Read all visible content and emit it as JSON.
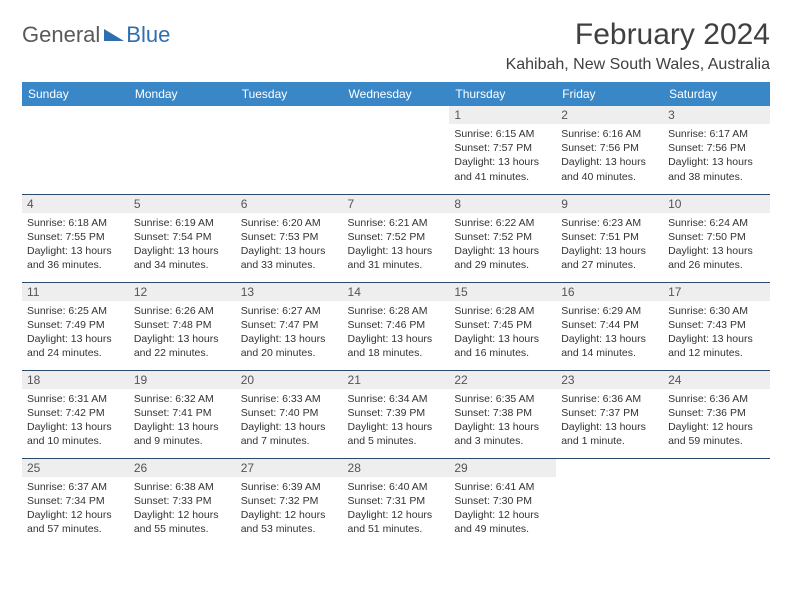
{
  "brand": {
    "part1": "General",
    "part2": "Blue"
  },
  "title": "February 2024",
  "location": "Kahibah, New South Wales, Australia",
  "colors": {
    "header_bg": "#3a87c8",
    "header_text": "#ffffff",
    "day_band": "#eeeeee",
    "rule": "#2b4a6d",
    "brand_gray": "#5a5a5a",
    "brand_blue": "#2f6fb0",
    "text": "#333333"
  },
  "day_names": [
    "Sunday",
    "Monday",
    "Tuesday",
    "Wednesday",
    "Thursday",
    "Friday",
    "Saturday"
  ],
  "weeks": [
    [
      {
        "n": "",
        "sr": "",
        "ss": "",
        "dl": ""
      },
      {
        "n": "",
        "sr": "",
        "ss": "",
        "dl": ""
      },
      {
        "n": "",
        "sr": "",
        "ss": "",
        "dl": ""
      },
      {
        "n": "",
        "sr": "",
        "ss": "",
        "dl": ""
      },
      {
        "n": "1",
        "sr": "Sunrise: 6:15 AM",
        "ss": "Sunset: 7:57 PM",
        "dl": "Daylight: 13 hours and 41 minutes."
      },
      {
        "n": "2",
        "sr": "Sunrise: 6:16 AM",
        "ss": "Sunset: 7:56 PM",
        "dl": "Daylight: 13 hours and 40 minutes."
      },
      {
        "n": "3",
        "sr": "Sunrise: 6:17 AM",
        "ss": "Sunset: 7:56 PM",
        "dl": "Daylight: 13 hours and 38 minutes."
      }
    ],
    [
      {
        "n": "4",
        "sr": "Sunrise: 6:18 AM",
        "ss": "Sunset: 7:55 PM",
        "dl": "Daylight: 13 hours and 36 minutes."
      },
      {
        "n": "5",
        "sr": "Sunrise: 6:19 AM",
        "ss": "Sunset: 7:54 PM",
        "dl": "Daylight: 13 hours and 34 minutes."
      },
      {
        "n": "6",
        "sr": "Sunrise: 6:20 AM",
        "ss": "Sunset: 7:53 PM",
        "dl": "Daylight: 13 hours and 33 minutes."
      },
      {
        "n": "7",
        "sr": "Sunrise: 6:21 AM",
        "ss": "Sunset: 7:52 PM",
        "dl": "Daylight: 13 hours and 31 minutes."
      },
      {
        "n": "8",
        "sr": "Sunrise: 6:22 AM",
        "ss": "Sunset: 7:52 PM",
        "dl": "Daylight: 13 hours and 29 minutes."
      },
      {
        "n": "9",
        "sr": "Sunrise: 6:23 AM",
        "ss": "Sunset: 7:51 PM",
        "dl": "Daylight: 13 hours and 27 minutes."
      },
      {
        "n": "10",
        "sr": "Sunrise: 6:24 AM",
        "ss": "Sunset: 7:50 PM",
        "dl": "Daylight: 13 hours and 26 minutes."
      }
    ],
    [
      {
        "n": "11",
        "sr": "Sunrise: 6:25 AM",
        "ss": "Sunset: 7:49 PM",
        "dl": "Daylight: 13 hours and 24 minutes."
      },
      {
        "n": "12",
        "sr": "Sunrise: 6:26 AM",
        "ss": "Sunset: 7:48 PM",
        "dl": "Daylight: 13 hours and 22 minutes."
      },
      {
        "n": "13",
        "sr": "Sunrise: 6:27 AM",
        "ss": "Sunset: 7:47 PM",
        "dl": "Daylight: 13 hours and 20 minutes."
      },
      {
        "n": "14",
        "sr": "Sunrise: 6:28 AM",
        "ss": "Sunset: 7:46 PM",
        "dl": "Daylight: 13 hours and 18 minutes."
      },
      {
        "n": "15",
        "sr": "Sunrise: 6:28 AM",
        "ss": "Sunset: 7:45 PM",
        "dl": "Daylight: 13 hours and 16 minutes."
      },
      {
        "n": "16",
        "sr": "Sunrise: 6:29 AM",
        "ss": "Sunset: 7:44 PM",
        "dl": "Daylight: 13 hours and 14 minutes."
      },
      {
        "n": "17",
        "sr": "Sunrise: 6:30 AM",
        "ss": "Sunset: 7:43 PM",
        "dl": "Daylight: 13 hours and 12 minutes."
      }
    ],
    [
      {
        "n": "18",
        "sr": "Sunrise: 6:31 AM",
        "ss": "Sunset: 7:42 PM",
        "dl": "Daylight: 13 hours and 10 minutes."
      },
      {
        "n": "19",
        "sr": "Sunrise: 6:32 AM",
        "ss": "Sunset: 7:41 PM",
        "dl": "Daylight: 13 hours and 9 minutes."
      },
      {
        "n": "20",
        "sr": "Sunrise: 6:33 AM",
        "ss": "Sunset: 7:40 PM",
        "dl": "Daylight: 13 hours and 7 minutes."
      },
      {
        "n": "21",
        "sr": "Sunrise: 6:34 AM",
        "ss": "Sunset: 7:39 PM",
        "dl": "Daylight: 13 hours and 5 minutes."
      },
      {
        "n": "22",
        "sr": "Sunrise: 6:35 AM",
        "ss": "Sunset: 7:38 PM",
        "dl": "Daylight: 13 hours and 3 minutes."
      },
      {
        "n": "23",
        "sr": "Sunrise: 6:36 AM",
        "ss": "Sunset: 7:37 PM",
        "dl": "Daylight: 13 hours and 1 minute."
      },
      {
        "n": "24",
        "sr": "Sunrise: 6:36 AM",
        "ss": "Sunset: 7:36 PM",
        "dl": "Daylight: 12 hours and 59 minutes."
      }
    ],
    [
      {
        "n": "25",
        "sr": "Sunrise: 6:37 AM",
        "ss": "Sunset: 7:34 PM",
        "dl": "Daylight: 12 hours and 57 minutes."
      },
      {
        "n": "26",
        "sr": "Sunrise: 6:38 AM",
        "ss": "Sunset: 7:33 PM",
        "dl": "Daylight: 12 hours and 55 minutes."
      },
      {
        "n": "27",
        "sr": "Sunrise: 6:39 AM",
        "ss": "Sunset: 7:32 PM",
        "dl": "Daylight: 12 hours and 53 minutes."
      },
      {
        "n": "28",
        "sr": "Sunrise: 6:40 AM",
        "ss": "Sunset: 7:31 PM",
        "dl": "Daylight: 12 hours and 51 minutes."
      },
      {
        "n": "29",
        "sr": "Sunrise: 6:41 AM",
        "ss": "Sunset: 7:30 PM",
        "dl": "Daylight: 12 hours and 49 minutes."
      },
      {
        "n": "",
        "sr": "",
        "ss": "",
        "dl": ""
      },
      {
        "n": "",
        "sr": "",
        "ss": "",
        "dl": ""
      }
    ]
  ]
}
